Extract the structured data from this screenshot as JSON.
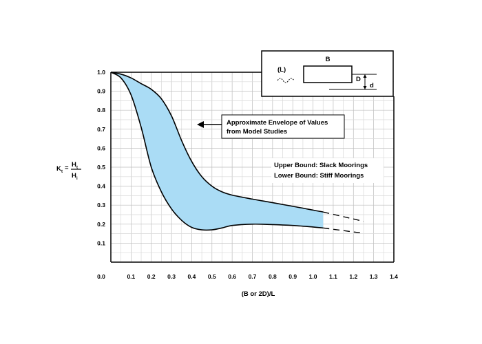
{
  "chart_data": {
    "type": "area",
    "title": "",
    "xlabel": "(B or 2D)/L",
    "ylabel": {
      "prefix": "K",
      "prefix_sub": "t",
      "eq": "=",
      "num": "H",
      "num_sub": "t",
      "den": "H",
      "den_sub": "i"
    },
    "xlim": [
      0,
      1.4
    ],
    "ylim": [
      0,
      1.0
    ],
    "x_ticks": [
      "0.0",
      "0.1",
      "0.2",
      "0.3",
      "0.4",
      "0.5",
      "0.6",
      "0.7",
      "0.8",
      "0.9",
      "1.0",
      "1.1",
      "1.2",
      "1.3",
      "1.4"
    ],
    "y_ticks": [
      "0.1",
      "0.2",
      "0.3",
      "0.4",
      "0.5",
      "0.6",
      "0.7",
      "0.8",
      "0.9",
      "1.0"
    ],
    "grid": true,
    "fill_color": "#aadcf5",
    "series": [
      {
        "values": [
          [
            0.0,
            1.0
          ],
          [
            0.05,
            0.99
          ],
          [
            0.1,
            0.97
          ],
          [
            0.15,
            0.94
          ],
          [
            0.2,
            0.91
          ],
          [
            0.25,
            0.86
          ],
          [
            0.3,
            0.77
          ],
          [
            0.35,
            0.64
          ],
          [
            0.4,
            0.53
          ],
          [
            0.45,
            0.45
          ],
          [
            0.5,
            0.4
          ],
          [
            0.55,
            0.37
          ],
          [
            0.6,
            0.353
          ],
          [
            0.7,
            0.332
          ],
          [
            0.8,
            0.313
          ],
          [
            0.9,
            0.294
          ],
          [
            1.0,
            0.274
          ],
          [
            1.05,
            0.264
          ]
        ],
        "extension": [
          [
            1.05,
            0.264
          ],
          [
            1.25,
            0.215
          ]
        ]
      },
      {
        "values": [
          [
            0.0,
            1.0
          ],
          [
            0.05,
            0.97
          ],
          [
            0.1,
            0.88
          ],
          [
            0.15,
            0.71
          ],
          [
            0.2,
            0.5
          ],
          [
            0.25,
            0.37
          ],
          [
            0.3,
            0.28
          ],
          [
            0.35,
            0.22
          ],
          [
            0.4,
            0.183
          ],
          [
            0.45,
            0.17
          ],
          [
            0.5,
            0.17
          ],
          [
            0.55,
            0.18
          ],
          [
            0.6,
            0.193
          ],
          [
            0.7,
            0.2
          ],
          [
            0.8,
            0.198
          ],
          [
            0.9,
            0.193
          ],
          [
            1.0,
            0.185
          ],
          [
            1.05,
            0.18
          ]
        ],
        "extension": [
          [
            1.05,
            0.18
          ],
          [
            1.25,
            0.152
          ]
        ]
      }
    ],
    "annotations": {
      "envelope": [
        "Approximate Envelope of Values",
        "from Model Studies"
      ],
      "bounds": [
        "Upper Bound: Slack Moorings",
        "Lower Bound: Stiff Moorings"
      ]
    },
    "inset": {
      "b": "B",
      "d_upper": "D",
      "d_lower": "d",
      "wave": "(L)"
    }
  }
}
